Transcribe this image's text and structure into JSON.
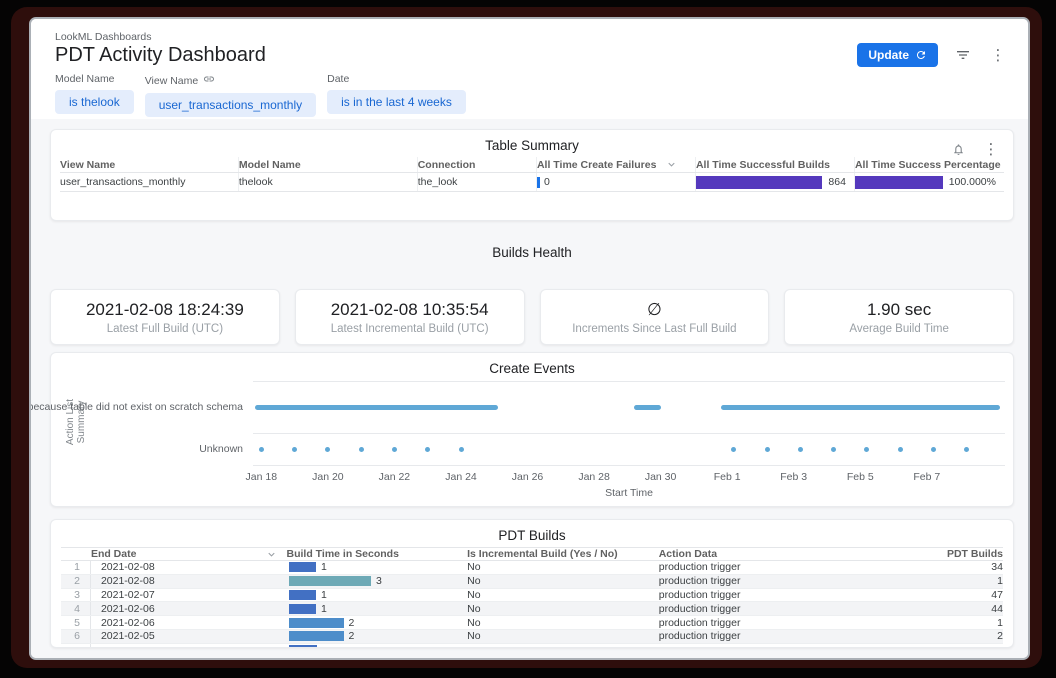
{
  "header": {
    "breadcrumb": "LookML Dashboards",
    "title": "PDT Activity Dashboard",
    "update_button": "Update",
    "accent_color": "#1a73e8"
  },
  "filters": [
    {
      "label": "Model Name",
      "value": "is thelook",
      "linked": false
    },
    {
      "label": "View Name",
      "value": "user_transactions_monthly",
      "linked": true
    },
    {
      "label": "Date",
      "value": "is in the last 4 weeks",
      "linked": false
    }
  ],
  "table_summary": {
    "title": "Table Summary",
    "columns": [
      "View Name",
      "Model Name",
      "Connection",
      "All Time Create Failures",
      "All Time Successful Builds",
      "All Time Success Percentage"
    ],
    "sorted_column": "All Time Create Failures",
    "row": {
      "view_name": "user_transactions_monthly",
      "model_name": "thelook",
      "connection": "the_look",
      "all_time_create_failures": "0",
      "all_time_successful_builds": "864",
      "all_time_success_percentage": "100.000%"
    },
    "bar_color": "#5438bd",
    "failures_bar_color": "#1a73e8"
  },
  "builds_health": {
    "title": "Builds Health",
    "kpis": [
      {
        "value": "2021-02-08 18:24:39",
        "label": "Latest Full Build (UTC)"
      },
      {
        "value": "2021-02-08 10:35:54",
        "label": "Latest Incremental Build (UTC)"
      },
      {
        "value": "∅",
        "label": "Increments Since Last Full Build"
      },
      {
        "value": "1.90 sec",
        "label": "Average Build Time"
      }
    ]
  },
  "chart_data": [
    {
      "id": "create-events",
      "type": "scatter",
      "title": "Create Events",
      "xlabel": "Start Time",
      "ylabel": "Action List Summary",
      "legend": false,
      "grid": true,
      "point_color": "#5fa8d6",
      "x_domain_days_from_jan18": [
        -0.25,
        22.35
      ],
      "x_ticks": [
        {
          "label": "Jan 18",
          "day": 0
        },
        {
          "label": "Jan 20",
          "day": 2
        },
        {
          "label": "Jan 22",
          "day": 4
        },
        {
          "label": "Jan 24",
          "day": 6
        },
        {
          "label": "Jan 26",
          "day": 8
        },
        {
          "label": "Jan 28",
          "day": 10
        },
        {
          "label": "Jan 30",
          "day": 12
        },
        {
          "label": "Feb 1",
          "day": 14
        },
        {
          "label": "Feb 3",
          "day": 16
        },
        {
          "label": "Feb 5",
          "day": 18
        },
        {
          "label": "Feb 7",
          "day": 20
        }
      ],
      "rows": [
        {
          "label": "Built because table did not exist on scratch schema",
          "segments_days": [
            [
              -0.2,
              7.1
            ],
            [
              11.2,
              12.0
            ],
            [
              13.8,
              22.2
            ]
          ]
        },
        {
          "label": "Unknown",
          "points_days": [
            0,
            1,
            2,
            3,
            4,
            5,
            6,
            14.2,
            15.2,
            16.2,
            17.2,
            18.2,
            19.2,
            20.2,
            21.2
          ]
        }
      ]
    },
    {
      "id": "table-summary",
      "type": "table",
      "title": "Table Summary",
      "columns": [
        "View Name",
        "Model Name",
        "Connection",
        "All Time Create Failures",
        "All Time Successful Builds",
        "All Time Success Percentage"
      ],
      "rows": [
        [
          "user_transactions_monthly",
          "thelook",
          "the_look",
          "0",
          "864",
          "100.000%"
        ]
      ]
    },
    {
      "id": "pdt-builds",
      "type": "table",
      "title": "PDT Builds",
      "columns": [
        "",
        "End Date",
        "Build Time in Seconds",
        "Is Incremental Build (Yes / No)",
        "Action Data",
        "PDT Builds"
      ],
      "rows": [
        [
          "1",
          "2021-02-08",
          "1",
          "No",
          "production trigger",
          "34"
        ],
        [
          "2",
          "2021-02-08",
          "3",
          "No",
          "production trigger",
          "1"
        ],
        [
          "3",
          "2021-02-07",
          "1",
          "No",
          "production trigger",
          "47"
        ],
        [
          "4",
          "2021-02-06",
          "1",
          "No",
          "production trigger",
          "44"
        ],
        [
          "5",
          "2021-02-06",
          "2",
          "No",
          "production trigger",
          "1"
        ],
        [
          "6",
          "2021-02-05",
          "2",
          "No",
          "production trigger",
          "2"
        ]
      ]
    }
  ],
  "pdt_builds": {
    "title": "PDT Builds",
    "columns": [
      "End Date",
      "Build Time in Seconds",
      "Is Incremental Build (Yes / No)",
      "Action Data",
      "PDT Builds"
    ],
    "sorted_column": "End Date",
    "rows": [
      {
        "n": "1",
        "end_date": "2021-02-08",
        "build_time_seconds": 1,
        "bar_color": "#4270c3",
        "is_incremental": "No",
        "action_data": "production trigger",
        "pdt_builds": "34"
      },
      {
        "n": "2",
        "end_date": "2021-02-08",
        "build_time_seconds": 3,
        "bar_color": "#6da9b6",
        "is_incremental": "No",
        "action_data": "production trigger",
        "pdt_builds": "1"
      },
      {
        "n": "3",
        "end_date": "2021-02-07",
        "build_time_seconds": 1,
        "bar_color": "#4270c3",
        "is_incremental": "No",
        "action_data": "production trigger",
        "pdt_builds": "47"
      },
      {
        "n": "4",
        "end_date": "2021-02-06",
        "build_time_seconds": 1,
        "bar_color": "#4270c3",
        "is_incremental": "No",
        "action_data": "production trigger",
        "pdt_builds": "44"
      },
      {
        "n": "5",
        "end_date": "2021-02-06",
        "build_time_seconds": 2,
        "bar_color": "#4d8dca",
        "is_incremental": "No",
        "action_data": "production trigger",
        "pdt_builds": "1"
      },
      {
        "n": "6",
        "end_date": "2021-02-05",
        "build_time_seconds": 2,
        "bar_color": "#4d8dca",
        "is_incremental": "No",
        "action_data": "production trigger",
        "pdt_builds": "2"
      }
    ],
    "partial_row": {
      "build_time_seconds": 1,
      "bar_color": "#4270c3"
    }
  }
}
